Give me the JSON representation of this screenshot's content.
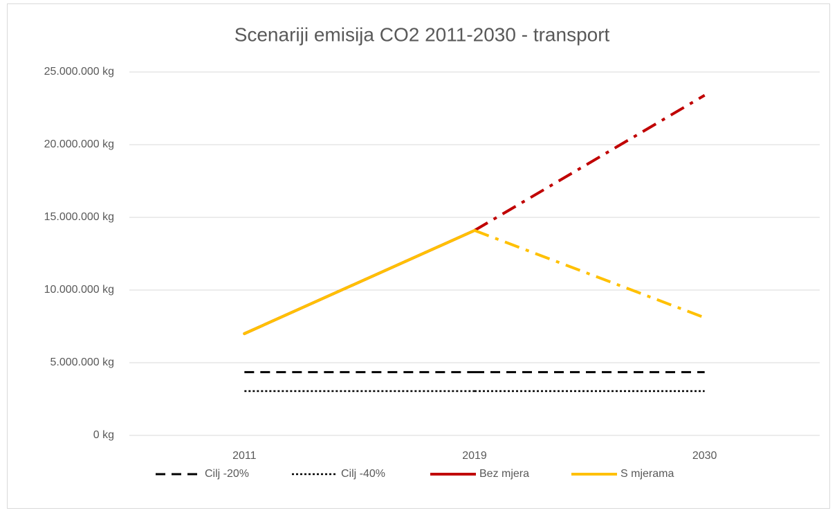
{
  "chart_data": {
    "type": "line",
    "title": "Scenariji emisija CO2 2011-2030 - transport",
    "categories": [
      "2011",
      "2019",
      "2030"
    ],
    "ylim": [
      0,
      25000000
    ],
    "yticks": [
      {
        "value": 0,
        "label": "0 kg"
      },
      {
        "value": 5000000,
        "label": "5.000.000 kg"
      },
      {
        "value": 10000000,
        "label": "10.000.000 kg"
      },
      {
        "value": 15000000,
        "label": "15.000.000 kg"
      },
      {
        "value": 20000000,
        "label": "20.000.000 kg"
      },
      {
        "value": 25000000,
        "label": "25.000.000 kg"
      }
    ],
    "grid": true,
    "legend": "bottom",
    "series": [
      {
        "name": "Cilj -20%",
        "color": "#000000",
        "segment_styles": [
          "dashed",
          "dashed"
        ],
        "values": [
          4350000,
          4350000,
          4350000
        ]
      },
      {
        "name": "Cilj -40%",
        "color": "#000000",
        "segment_styles": [
          "dotted",
          "dotted"
        ],
        "values": [
          3050000,
          3050000,
          3050000
        ]
      },
      {
        "name": "Bez mjera",
        "color": "#c00000",
        "segment_styles": [
          "solid",
          "dash-dot"
        ],
        "values": [
          7000000,
          14100000,
          23400000
        ]
      },
      {
        "name": "S mjerama",
        "color": "#ffc000",
        "segment_styles": [
          "solid",
          "dash-dot"
        ],
        "values": [
          7000000,
          14100000,
          8100000
        ]
      }
    ]
  }
}
